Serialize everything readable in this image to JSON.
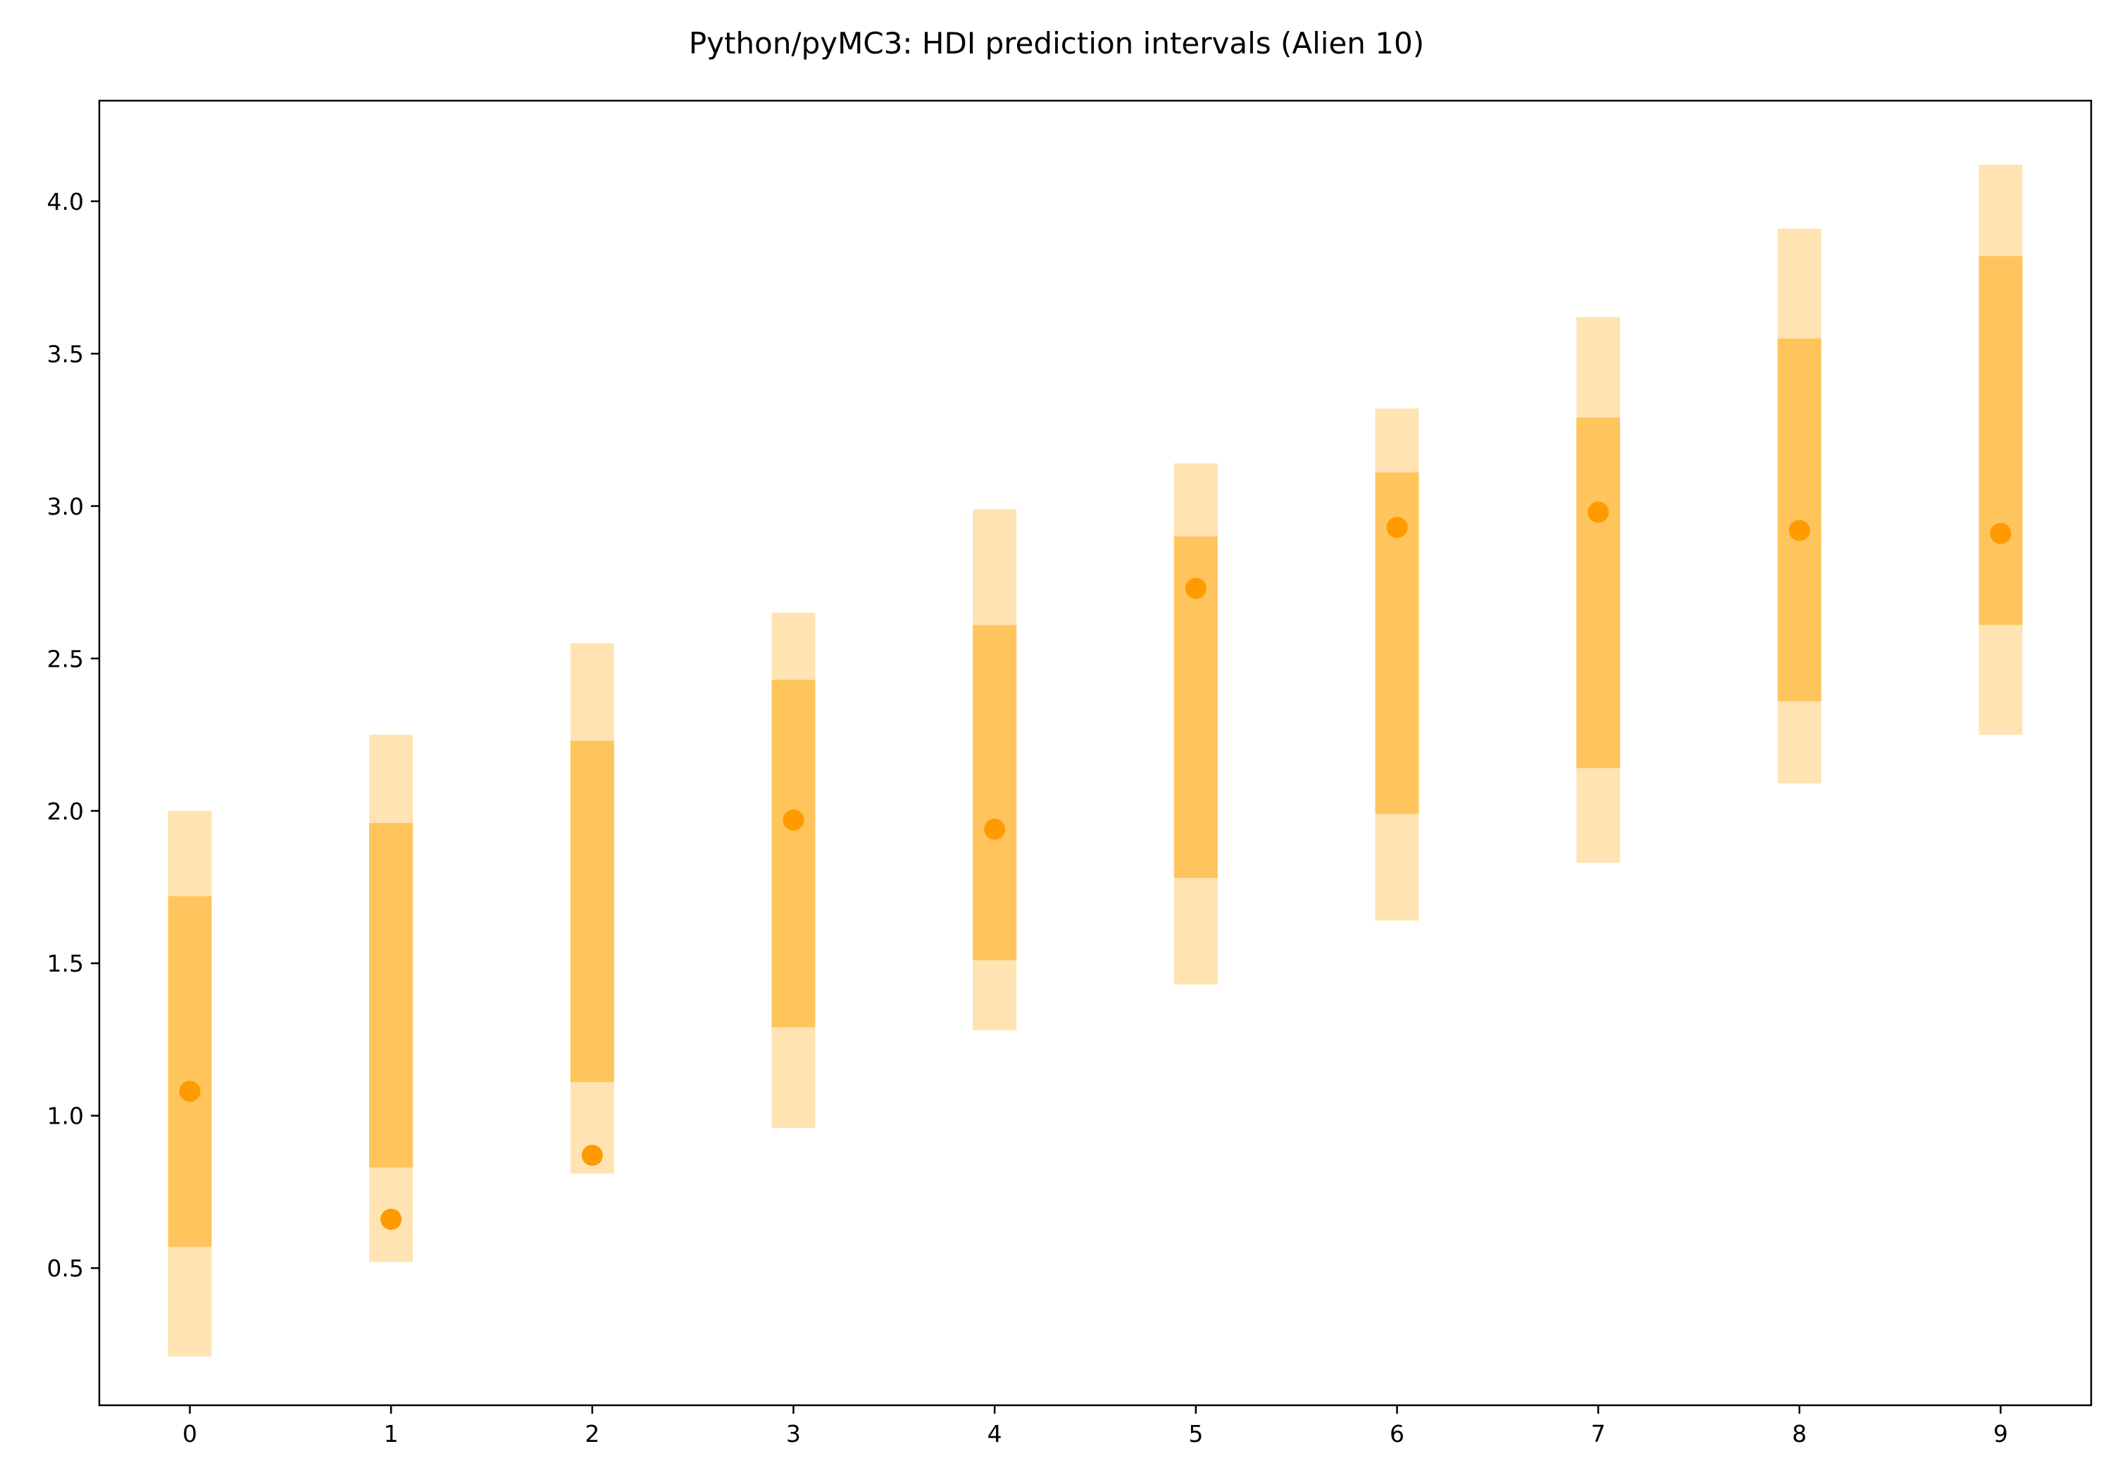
{
  "chart_data": {
    "type": "interval",
    "title": "Python/pyMC3: HDI prediction intervals (Alien 10)",
    "xlabel": "",
    "ylabel": "",
    "xlim": [
      -0.45,
      9.45
    ],
    "ylim": [
      0.05,
      4.33
    ],
    "x_ticks": [
      "0",
      "1",
      "2",
      "3",
      "4",
      "5",
      "6",
      "7",
      "8",
      "9"
    ],
    "y_ticks": [
      "0.5",
      "1.0",
      "1.5",
      "2.0",
      "2.5",
      "3.0",
      "3.5",
      "4.0"
    ],
    "grid": false,
    "legend": "none",
    "colors": {
      "outer_interval": "#ffe3b3",
      "inner_interval": "#ffc55c",
      "point": "#ff9a00"
    },
    "x": [
      0,
      1,
      2,
      3,
      4,
      5,
      6,
      7,
      8,
      9
    ],
    "points": [
      1.08,
      0.66,
      0.87,
      1.97,
      1.94,
      2.73,
      2.93,
      2.98,
      2.92,
      2.91
    ],
    "outer_intervals": [
      [
        0.21,
        2.0
      ],
      [
        0.52,
        2.25
      ],
      [
        0.81,
        2.55
      ],
      [
        0.96,
        2.65
      ],
      [
        1.28,
        2.99
      ],
      [
        1.43,
        3.14
      ],
      [
        1.64,
        3.32
      ],
      [
        1.83,
        3.62
      ],
      [
        2.09,
        3.91
      ],
      [
        2.25,
        4.12
      ]
    ],
    "inner_intervals": [
      [
        0.57,
        1.72
      ],
      [
        0.83,
        1.96
      ],
      [
        1.11,
        2.23
      ],
      [
        1.29,
        2.43
      ],
      [
        1.51,
        2.61
      ],
      [
        1.78,
        2.9
      ],
      [
        1.99,
        3.11
      ],
      [
        2.14,
        3.29
      ],
      [
        2.36,
        3.55
      ],
      [
        2.61,
        3.82
      ]
    ]
  }
}
